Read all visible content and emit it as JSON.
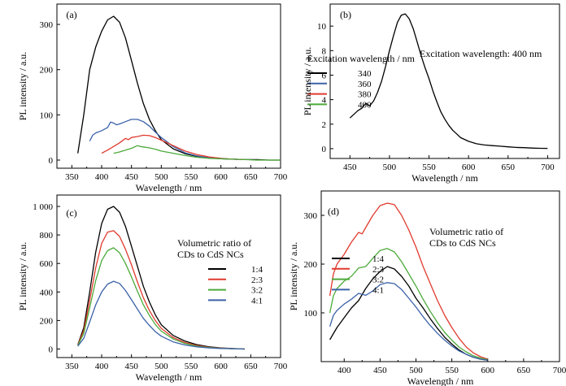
{
  "chart_data": [
    {
      "panel": "(a)",
      "type": "line",
      "xlabel": "Wavelength / nm",
      "ylabel": "PL intensity / a.u.",
      "xlim": [
        325,
        700
      ],
      "ylim": [
        -18,
        345
      ],
      "xticks": [
        350,
        400,
        450,
        500,
        550,
        600,
        650,
        700
      ],
      "xtick_labels": [
        "350",
        "400",
        "450",
        "500",
        "550",
        "600",
        "650",
        "700"
      ],
      "yticks": [
        0,
        100,
        200,
        300
      ],
      "ytick_labels": [
        "0",
        "100",
        "200",
        "300"
      ],
      "annotation": "Excitation wavelength / nm",
      "legend": "right",
      "series": [
        {
          "name": "340",
          "color": "#000000",
          "x": [
            360,
            370,
            380,
            390,
            400,
            410,
            420,
            430,
            440,
            450,
            460,
            470,
            480,
            490,
            500,
            520,
            540,
            560,
            580,
            600,
            620,
            640,
            660,
            680,
            700
          ],
          "y": [
            15,
            100,
            200,
            250,
            285,
            310,
            318,
            305,
            270,
            220,
            170,
            125,
            90,
            65,
            45,
            25,
            14,
            8,
            5,
            3,
            2,
            1,
            1,
            0,
            0
          ]
        },
        {
          "name": "360",
          "color": "#3b62a8",
          "x": [
            380,
            385,
            390,
            400,
            410,
            415,
            420,
            425,
            430,
            440,
            450,
            460,
            470,
            480,
            490,
            500,
            520,
            540,
            560,
            580,
            600,
            620,
            640
          ],
          "y": [
            42,
            55,
            60,
            65,
            72,
            84,
            82,
            78,
            80,
            85,
            90,
            90,
            85,
            75,
            62,
            50,
            30,
            16,
            9,
            5,
            3,
            2,
            1
          ]
        },
        {
          "name": "380",
          "color": "#e03a2e",
          "x": [
            400,
            410,
            420,
            430,
            440,
            445,
            450,
            460,
            470,
            480,
            490,
            500,
            520,
            540,
            560,
            580,
            600,
            620,
            640
          ],
          "y": [
            15,
            22,
            30,
            38,
            48,
            45,
            50,
            52,
            55,
            54,
            50,
            44,
            32,
            20,
            12,
            7,
            4,
            2,
            1
          ]
        },
        {
          "name": "400",
          "color": "#4caa3a",
          "x": [
            420,
            430,
            440,
            450,
            460,
            465,
            470,
            480,
            490,
            500,
            520,
            540,
            560,
            580,
            600,
            620,
            640,
            660,
            680,
            700
          ],
          "y": [
            15,
            18,
            22,
            26,
            32,
            30,
            29,
            27,
            24,
            20,
            15,
            10,
            6,
            4,
            3,
            2,
            1,
            0,
            0,
            0
          ]
        }
      ]
    },
    {
      "panel": "(b)",
      "type": "line",
      "xlabel": "Wavelength / nm",
      "ylabel": "PL intensity / a.u.",
      "xlim": [
        425,
        715
      ],
      "ylim": [
        -0.8,
        11.8
      ],
      "xticks": [
        450,
        500,
        550,
        600,
        650,
        700
      ],
      "xtick_labels": [
        "450",
        "500",
        "550",
        "600",
        "650",
        "700"
      ],
      "yticks": [
        0,
        2,
        4,
        6,
        8,
        10
      ],
      "ytick_labels": [
        "0",
        "2",
        "4",
        "6",
        "8",
        "10"
      ],
      "annotation": "Excitation wavelength: 400 nm",
      "series": [
        {
          "name": "",
          "color": "#000000",
          "x": [
            450,
            455,
            460,
            465,
            470,
            475,
            480,
            485,
            490,
            495,
            500,
            505,
            510,
            515,
            520,
            525,
            530,
            535,
            540,
            545,
            550,
            555,
            560,
            565,
            570,
            575,
            580,
            585,
            590,
            600,
            610,
            620,
            630,
            640,
            650,
            660,
            670,
            680,
            690,
            700
          ],
          "y": [
            2.5,
            2.8,
            3.1,
            3.3,
            3.7,
            3.5,
            3.9,
            4.6,
            5.5,
            6.7,
            8.0,
            9.2,
            10.3,
            10.9,
            11.0,
            10.6,
            9.8,
            8.7,
            7.6,
            6.6,
            5.7,
            4.7,
            3.8,
            3.0,
            2.4,
            1.9,
            1.5,
            1.2,
            0.9,
            0.6,
            0.4,
            0.3,
            0.25,
            0.2,
            0.15,
            0.1,
            0.08,
            0.05,
            0.03,
            0.02
          ]
        }
      ]
    },
    {
      "panel": "(c)",
      "type": "line",
      "xlabel": "Wavelength / nm",
      "ylabel": "PL intensity / a.u.",
      "xlim": [
        325,
        700
      ],
      "ylim": [
        -60,
        1080
      ],
      "xticks": [
        350,
        400,
        450,
        500,
        550,
        600,
        650,
        700
      ],
      "xtick_labels": [
        "350",
        "400",
        "450",
        "500",
        "550",
        "600",
        "650",
        "700"
      ],
      "yticks": [
        0,
        200,
        400,
        600,
        800,
        1000
      ],
      "ytick_labels": [
        "0",
        "200",
        "400",
        "600",
        "800",
        "1 000"
      ],
      "annotation": "Volumetric ratio of\nCDs to CdS NCs",
      "legend": "right",
      "series": [
        {
          "name": "1:4",
          "color": "#000000",
          "x": [
            360,
            370,
            380,
            390,
            400,
            410,
            420,
            430,
            440,
            450,
            460,
            470,
            480,
            490,
            500,
            520,
            540,
            560,
            580,
            600,
            620,
            640
          ],
          "y": [
            30,
            150,
            400,
            680,
            880,
            980,
            1000,
            960,
            860,
            720,
            580,
            440,
            330,
            240,
            170,
            95,
            55,
            30,
            15,
            8,
            3,
            0
          ]
        },
        {
          "name": "2:3",
          "color": "#e03a2e",
          "x": [
            360,
            370,
            380,
            390,
            400,
            410,
            420,
            430,
            440,
            450,
            460,
            470,
            480,
            490,
            500,
            520,
            540,
            560,
            580,
            600,
            620,
            640
          ],
          "y": [
            28,
            130,
            340,
            570,
            740,
            820,
            830,
            790,
            700,
            590,
            470,
            360,
            270,
            200,
            145,
            80,
            45,
            25,
            12,
            6,
            2,
            0
          ]
        },
        {
          "name": "3:2",
          "color": "#4caa3a",
          "x": [
            360,
            370,
            380,
            390,
            400,
            410,
            420,
            430,
            440,
            450,
            460,
            470,
            480,
            490,
            500,
            520,
            540,
            560,
            580,
            600,
            620,
            640
          ],
          "y": [
            25,
            110,
            290,
            480,
            620,
            690,
            710,
            675,
            600,
            505,
            405,
            310,
            235,
            172,
            125,
            70,
            38,
            20,
            10,
            5,
            2,
            0
          ]
        },
        {
          "name": "4:1",
          "color": "#3b62a8",
          "x": [
            360,
            370,
            380,
            390,
            400,
            410,
            420,
            430,
            440,
            450,
            460,
            470,
            480,
            490,
            500,
            520,
            540,
            560,
            580,
            600,
            620,
            640
          ],
          "y": [
            20,
            75,
            190,
            310,
            400,
            455,
            475,
            460,
            410,
            345,
            280,
            215,
            165,
            122,
            90,
            50,
            28,
            15,
            8,
            4,
            2,
            0
          ]
        }
      ]
    },
    {
      "panel": "(d)",
      "type": "line",
      "xlabel": "Wavelength / nm",
      "ylabel": "PL intensity / a.u.",
      "xlim": [
        368,
        700
      ],
      "ylim": [
        0,
        350
      ],
      "xticks": [
        400,
        450,
        500,
        550,
        600,
        650,
        700
      ],
      "xtick_labels": [
        "400",
        "450",
        "500",
        "550",
        "600",
        "650",
        "700"
      ],
      "yticks": [
        100,
        200,
        300
      ],
      "ytick_labels": [
        "100",
        "200",
        "300"
      ],
      "annotation": "Volumetric ratio of\nCDs to CdS NCs",
      "legend": "right",
      "series": [
        {
          "name": "1:4",
          "color": "#000000",
          "x": [
            380,
            390,
            400,
            410,
            420,
            430,
            440,
            450,
            460,
            470,
            480,
            490,
            500,
            510,
            520,
            530,
            540,
            550,
            560,
            570,
            580,
            590,
            600
          ],
          "y": [
            45,
            70,
            90,
            110,
            125,
            150,
            170,
            185,
            195,
            190,
            175,
            155,
            130,
            110,
            88,
            68,
            50,
            36,
            24,
            15,
            9,
            5,
            3
          ]
        },
        {
          "name": "2:3",
          "color": "#e03a2e",
          "x": [
            380,
            385,
            390,
            400,
            410,
            420,
            425,
            430,
            440,
            450,
            460,
            470,
            480,
            490,
            500,
            510,
            520,
            530,
            540,
            550,
            560,
            570,
            580,
            590,
            600
          ],
          "y": [
            135,
            180,
            200,
            220,
            245,
            265,
            262,
            275,
            300,
            320,
            325,
            322,
            300,
            270,
            235,
            195,
            160,
            125,
            95,
            70,
            48,
            30,
            18,
            10,
            5
          ]
        },
        {
          "name": "3:2",
          "color": "#4caa3a",
          "x": [
            380,
            385,
            390,
            400,
            410,
            420,
            430,
            440,
            450,
            460,
            470,
            480,
            490,
            500,
            510,
            520,
            530,
            540,
            550,
            560,
            570,
            580,
            590,
            600
          ],
          "y": [
            100,
            135,
            150,
            165,
            175,
            192,
            195,
            212,
            228,
            232,
            225,
            205,
            180,
            155,
            128,
            103,
            80,
            60,
            44,
            30,
            20,
            12,
            7,
            4
          ]
        },
        {
          "name": "4:1",
          "color": "#3b62a8",
          "x": [
            380,
            385,
            390,
            400,
            410,
            420,
            430,
            440,
            450,
            460,
            470,
            480,
            490,
            500,
            510,
            520,
            530,
            540,
            550,
            560,
            570,
            580,
            590,
            600
          ],
          "y": [
            72,
            95,
            105,
            118,
            128,
            140,
            136,
            145,
            158,
            162,
            160,
            148,
            130,
            112,
            92,
            74,
            58,
            44,
            32,
            22,
            15,
            9,
            5,
            3
          ]
        }
      ]
    }
  ]
}
